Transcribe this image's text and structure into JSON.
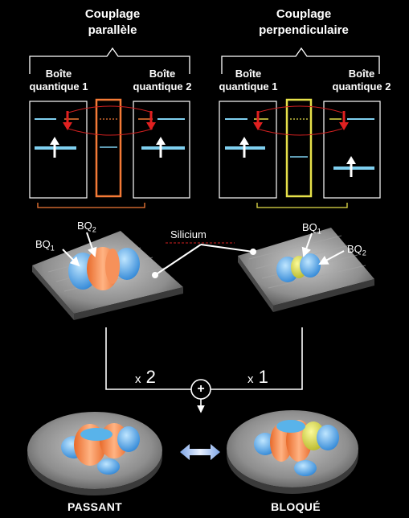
{
  "parallel": {
    "title_line1": "Couplage",
    "title_line2": "parallèle",
    "qd1_line1": "Boîte",
    "qd1_line2": "quantique 1",
    "qd2_line1": "Boîte",
    "qd2_line2": "quantique 2",
    "barrier_color": "#f47a36",
    "dot1_label": "BQ",
    "dot1_sub": "1",
    "dot2_label": "BQ",
    "dot2_sub": "2"
  },
  "perpendicular": {
    "title_line1": "Couplage",
    "title_line2": "perpendiculaire",
    "qd1_line1": "Boîte",
    "qd1_line2": "quantique 1",
    "qd2_line1": "Boîte",
    "qd2_line2": "quantique 2",
    "barrier_color": "#e6e14a",
    "dot1_label": "BQ",
    "dot1_sub": "1",
    "dot2_label": "BQ",
    "dot2_sub": "2"
  },
  "silicon_label": "Silicium",
  "combination": {
    "left_factor_prefix": "x",
    "left_factor": "2",
    "right_factor_prefix": "x",
    "right_factor": "1",
    "plus_symbol": "+"
  },
  "results": {
    "left_state": "PASSANT",
    "right_state": "BLOQUÉ"
  },
  "colors": {
    "level_blue": "#7fd0f0",
    "spin_red": "#e02020",
    "orange_lobe": "#f6915a",
    "blue_lobe": "#59b3ea",
    "yellow_lobe": "#dede45"
  }
}
